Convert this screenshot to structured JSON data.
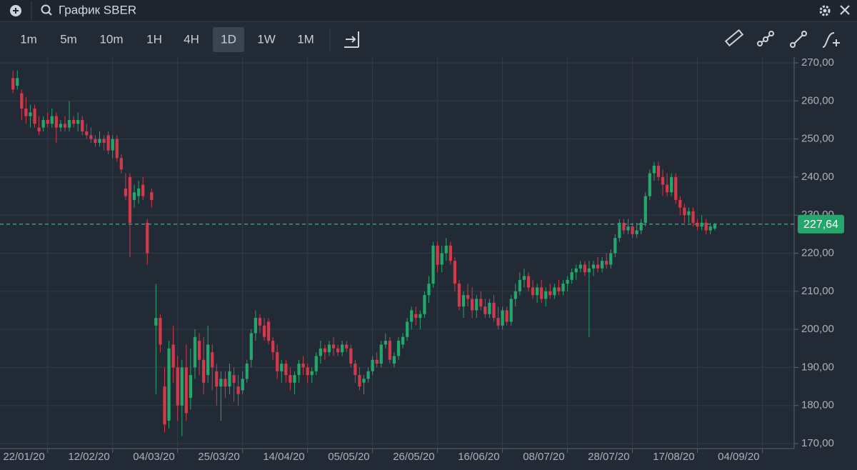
{
  "header": {
    "title": "График SBER"
  },
  "toolbar": {
    "intervals": [
      "1m",
      "5m",
      "10m",
      "1H",
      "4H",
      "1D",
      "1W",
      "1M"
    ],
    "active_index": 5
  },
  "chart_data": {
    "type": "candlestick",
    "up_color": "#23a76b",
    "down_color": "#d23a4c",
    "grid": true,
    "xlim": [
      -3,
      180
    ],
    "ylim": [
      170,
      270
    ],
    "xticks": [
      {
        "value": 8,
        "label": "22/01/20"
      },
      {
        "value": 23,
        "label": "12/02/20"
      },
      {
        "value": 38,
        "label": "04/03/20"
      },
      {
        "value": 53,
        "label": "25/03/20"
      },
      {
        "value": 68,
        "label": "14/04/20"
      },
      {
        "value": 83,
        "label": "05/05/20"
      },
      {
        "value": 98,
        "label": "26/05/20"
      },
      {
        "value": 113,
        "label": "16/06/20"
      },
      {
        "value": 128,
        "label": "08/07/20"
      },
      {
        "value": 143,
        "label": "28/07/20"
      },
      {
        "value": 158,
        "label": "17/08/20"
      },
      {
        "value": 173,
        "label": "04/09/20"
      }
    ],
    "yticks": [
      {
        "value": 170,
        "label": "170,00"
      },
      {
        "value": 180,
        "label": "180,00"
      },
      {
        "value": 190,
        "label": "190,00"
      },
      {
        "value": 200,
        "label": "200,00"
      },
      {
        "value": 210,
        "label": "210,00"
      },
      {
        "value": 220,
        "label": "220,00"
      },
      {
        "value": 230,
        "label": "230,00"
      },
      {
        "value": 240,
        "label": "240,00"
      },
      {
        "value": 250,
        "label": "250,00"
      },
      {
        "value": 260,
        "label": "260,00"
      },
      {
        "value": 270,
        "label": "270,00"
      }
    ],
    "last_price": {
      "value": 227.64,
      "label": "227,64"
    },
    "candles": [
      [
        266,
        268,
        262,
        263
      ],
      [
        264,
        268,
        263,
        266
      ],
      [
        262,
        263,
        255,
        258
      ],
      [
        258,
        261,
        254,
        256
      ],
      [
        256,
        259,
        253,
        257
      ],
      [
        258,
        259,
        253,
        254
      ],
      [
        253,
        256,
        251,
        252
      ],
      [
        253,
        256,
        252,
        255
      ],
      [
        255,
        257,
        253,
        254
      ],
      [
        254,
        258,
        253,
        256
      ],
      [
        256,
        257,
        249,
        253
      ],
      [
        253,
        255,
        252,
        254
      ],
      [
        254,
        256,
        252,
        253
      ],
      [
        253,
        260,
        252,
        255
      ],
      [
        255,
        256,
        253,
        254
      ],
      [
        254,
        257,
        252,
        255
      ],
      [
        255,
        256,
        251,
        252
      ],
      [
        252,
        254,
        250,
        251
      ],
      [
        251,
        253,
        249,
        250
      ],
      [
        250,
        251,
        248,
        249
      ],
      [
        249,
        252,
        248,
        250
      ],
      [
        250,
        251,
        247,
        249
      ],
      [
        251,
        252,
        246,
        247
      ],
      [
        247,
        251,
        245,
        250
      ],
      [
        250,
        251,
        244,
        245
      ],
      [
        245,
        246,
        241,
        242
      ],
      [
        237,
        241,
        234,
        235
      ],
      [
        240,
        241,
        219,
        228
      ],
      [
        234,
        238,
        232,
        236
      ],
      [
        235,
        239,
        233,
        237
      ],
      [
        238,
        240,
        234,
        235
      ],
      [
        228,
        229,
        217,
        220
      ],
      [
        236,
        237,
        232,
        234
      ],
      [
        201,
        212,
        183,
        203
      ],
      [
        203,
        204,
        194,
        196
      ],
      [
        185,
        190,
        173,
        175
      ],
      [
        176,
        197,
        174,
        195
      ],
      [
        196,
        201,
        186,
        190
      ],
      [
        190,
        193,
        176,
        180
      ],
      [
        180,
        192,
        172,
        190
      ],
      [
        190,
        196,
        176,
        178
      ],
      [
        182,
        195,
        179,
        188
      ],
      [
        190,
        200,
        187,
        198
      ],
      [
        197,
        199,
        188,
        192
      ],
      [
        192,
        198,
        183,
        186
      ],
      [
        188,
        201,
        186,
        196
      ],
      [
        194,
        196,
        184,
        190
      ],
      [
        189,
        191,
        180,
        185
      ],
      [
        185,
        189,
        176,
        187
      ],
      [
        187,
        189,
        182,
        185
      ],
      [
        185,
        191,
        183,
        189
      ],
      [
        188,
        190,
        181,
        186
      ],
      [
        185,
        188,
        180,
        183
      ],
      [
        184,
        189,
        183,
        187
      ],
      [
        187,
        192,
        186,
        191
      ],
      [
        192,
        200,
        190,
        199
      ],
      [
        199,
        205,
        197,
        203
      ],
      [
        203,
        204,
        199,
        201
      ],
      [
        201,
        203,
        197,
        198
      ],
      [
        202,
        203,
        196,
        197
      ],
      [
        197,
        198,
        192,
        194
      ],
      [
        194,
        196,
        187,
        189
      ],
      [
        189,
        192,
        186,
        191
      ],
      [
        191,
        192,
        186,
        188
      ],
      [
        188,
        190,
        184,
        186
      ],
      [
        186,
        189,
        183,
        188
      ],
      [
        188,
        192,
        186,
        191
      ],
      [
        191,
        193,
        188,
        190
      ],
      [
        190,
        191,
        186,
        188
      ],
      [
        188,
        190,
        186,
        189
      ],
      [
        189,
        194,
        188,
        193
      ],
      [
        193,
        197,
        191,
        195
      ],
      [
        195,
        196,
        192,
        194
      ],
      [
        194,
        197,
        193,
        196
      ],
      [
        196,
        198,
        193,
        195
      ],
      [
        195,
        196,
        193,
        194
      ],
      [
        194,
        197,
        193,
        196
      ],
      [
        196,
        197,
        194,
        195
      ],
      [
        195,
        196,
        190,
        191
      ],
      [
        191,
        192,
        186,
        188
      ],
      [
        188,
        190,
        184,
        185
      ],
      [
        186,
        188,
        183,
        187
      ],
      [
        187,
        190,
        186,
        189
      ],
      [
        189,
        193,
        188,
        192
      ],
      [
        192,
        194,
        190,
        191
      ],
      [
        191,
        197,
        190,
        196
      ],
      [
        196,
        199,
        195,
        197
      ],
      [
        197,
        198,
        191,
        192
      ],
      [
        191,
        194,
        190,
        193
      ],
      [
        193,
        198,
        192,
        197
      ],
      [
        196,
        199,
        195,
        198
      ],
      [
        198,
        203,
        197,
        202
      ],
      [
        202,
        206,
        200,
        205
      ],
      [
        204,
        206,
        201,
        203
      ],
      [
        203,
        205,
        200,
        204
      ],
      [
        204,
        210,
        203,
        209
      ],
      [
        209,
        214,
        207,
        212
      ],
      [
        212,
        223,
        211,
        222
      ],
      [
        222,
        223,
        215,
        217
      ],
      [
        217,
        222,
        215,
        220
      ],
      [
        220,
        224,
        218,
        222
      ],
      [
        222,
        223,
        217,
        218
      ],
      [
        218,
        219,
        210,
        212
      ],
      [
        212,
        213,
        205,
        206
      ],
      [
        206,
        210,
        203,
        209
      ],
      [
        209,
        212,
        206,
        208
      ],
      [
        208,
        211,
        203,
        205
      ],
      [
        205,
        209,
        203,
        208
      ],
      [
        208,
        210,
        205,
        206
      ],
      [
        206,
        208,
        203,
        204
      ],
      [
        204,
        208,
        203,
        207
      ],
      [
        207,
        209,
        202,
        203
      ],
      [
        203,
        206,
        200,
        201
      ],
      [
        201,
        206,
        200,
        205
      ],
      [
        205,
        206,
        201,
        202
      ],
      [
        202,
        209,
        201,
        208
      ],
      [
        208,
        212,
        206,
        210
      ],
      [
        210,
        215,
        209,
        213
      ],
      [
        213,
        216,
        211,
        214
      ],
      [
        214,
        215,
        210,
        211
      ],
      [
        211,
        213,
        208,
        209
      ],
      [
        209,
        212,
        207,
        211
      ],
      [
        211,
        213,
        207,
        208
      ],
      [
        208,
        211,
        206,
        210
      ],
      [
        210,
        212,
        208,
        209
      ],
      [
        209,
        212,
        208,
        211
      ],
      [
        211,
        213,
        209,
        210
      ],
      [
        210,
        213,
        209,
        212
      ],
      [
        212,
        214,
        210,
        213
      ],
      [
        213,
        216,
        212,
        215
      ],
      [
        215,
        217,
        213,
        216
      ],
      [
        216,
        218,
        215,
        217
      ],
      [
        217,
        218,
        214,
        215
      ],
      [
        215,
        218,
        198,
        216
      ],
      [
        216,
        218,
        214,
        217
      ],
      [
        217,
        219,
        215,
        216
      ],
      [
        216,
        219,
        215,
        218
      ],
      [
        218,
        220,
        216,
        217
      ],
      [
        217,
        221,
        216,
        220
      ],
      [
        220,
        225,
        219,
        224
      ],
      [
        224,
        229,
        223,
        228
      ],
      [
        228,
        229,
        225,
        226
      ],
      [
        226,
        229,
        225,
        227
      ],
      [
        227,
        228,
        224,
        225
      ],
      [
        225,
        228,
        224,
        226
      ],
      [
        226,
        229,
        225,
        228
      ],
      [
        228,
        236,
        227,
        235
      ],
      [
        235,
        242,
        234,
        241
      ],
      [
        241,
        244,
        239,
        243
      ],
      [
        243,
        244,
        239,
        240
      ],
      [
        240,
        242,
        235,
        238
      ],
      [
        238,
        241,
        235,
        236
      ],
      [
        236,
        241,
        235,
        240
      ],
      [
        240,
        241,
        233,
        234
      ],
      [
        234,
        235,
        230,
        232
      ],
      [
        232,
        233,
        228,
        230
      ],
      [
        230,
        232,
        228,
        231
      ],
      [
        231,
        232,
        227,
        228
      ],
      [
        228,
        229,
        226,
        227
      ],
      [
        227,
        230,
        226,
        228
      ],
      [
        228,
        229,
        225,
        226
      ],
      [
        226,
        228,
        225,
        227
      ],
      [
        226.5,
        228,
        226,
        227.64
      ]
    ]
  }
}
